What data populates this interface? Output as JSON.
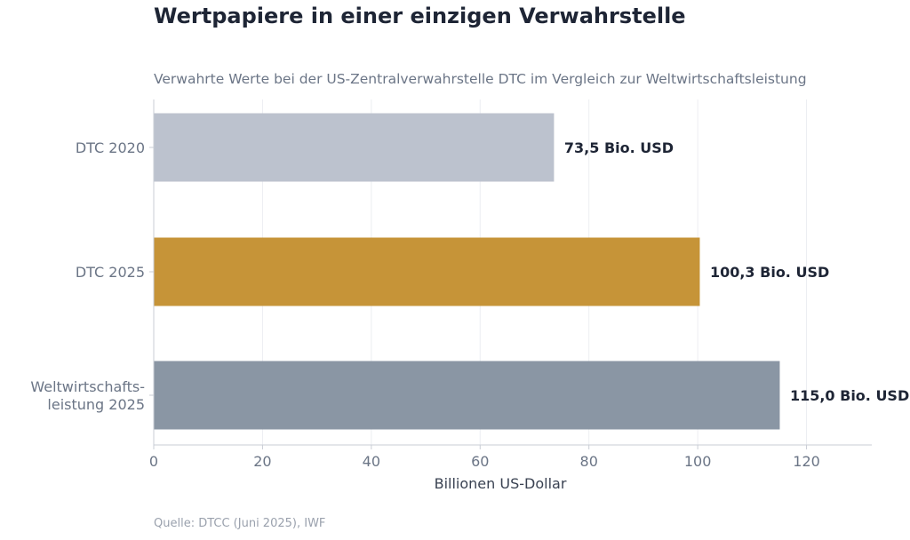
{
  "title": "Wertpapiere in einer einzigen Verwahrstelle",
  "subtitle": "Verwahrte Werte bei der US-Zentralverwahrstelle DTC im Vergleich zur Weltwirtschaftsleistung",
  "source": "Quelle: DTCC (Juni 2025), IWF",
  "chart_data": {
    "type": "bar",
    "orientation": "horizontal",
    "categories": [
      [
        "DTC 2020"
      ],
      [
        "DTC 2025"
      ],
      [
        "Weltwirtschafts-",
        "leistung 2025"
      ]
    ],
    "values": [
      73.5,
      100.3,
      115.0
    ],
    "data_labels": [
      "73,5 Bio. USD",
      "100,3 Bio. USD",
      "115,0 Bio. USD"
    ],
    "colors": [
      "#bcc2ce",
      "#c69438",
      "#8a96a4"
    ],
    "xlabel": "Billionen US-Dollar",
    "ylabel": "",
    "xlim": [
      0,
      132
    ],
    "xticks": [
      0,
      20,
      40,
      60,
      80,
      100,
      120
    ],
    "xtick_labels": [
      "0",
      "20",
      "40",
      "60",
      "80",
      "100",
      "120"
    ],
    "grid": true
  }
}
